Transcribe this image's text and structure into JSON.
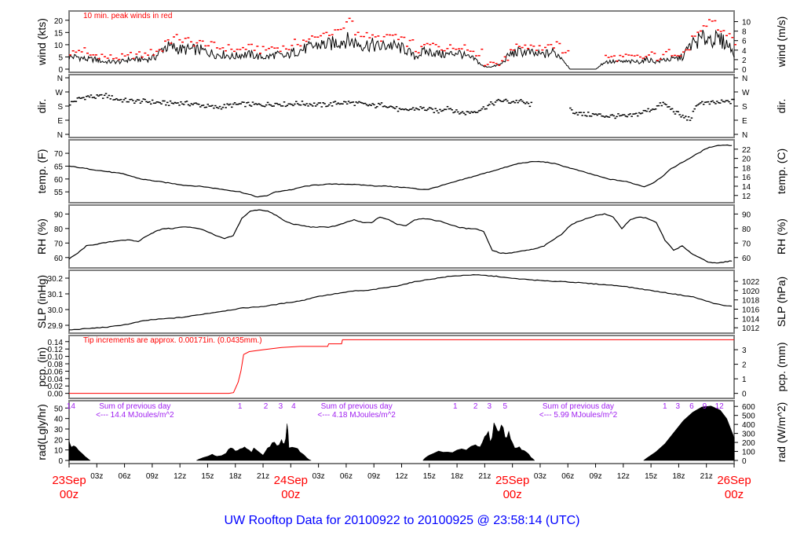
{
  "chart_data": {
    "type": "line",
    "title": "UW Rooftop Data for 20100922  to  20100925 @ 23:58:14  (UTC)",
    "colors": {
      "line": "#000000",
      "peak": "#ff0000",
      "precip": "#ff0000",
      "annot": "#a020f0",
      "title": "#0000ff",
      "date": "#ff0000",
      "frame": "#808080"
    },
    "x_hours_range": [
      0,
      72
    ],
    "x_ticks": [
      "03z",
      "06z",
      "09z",
      "12z",
      "15z",
      "18z",
      "21z",
      "03z",
      "06z",
      "09z",
      "12z",
      "15z",
      "18z",
      "21z",
      "03z",
      "06z",
      "09z",
      "12z",
      "15z",
      "18z",
      "21z"
    ],
    "x_tick_hours": [
      3,
      6,
      9,
      12,
      15,
      18,
      21,
      27,
      30,
      33,
      36,
      39,
      42,
      45,
      51,
      54,
      57,
      60,
      63,
      66,
      69
    ],
    "date_labels": [
      {
        "day": "23Sep",
        "hour": "00z",
        "at": 0
      },
      {
        "day": "24Sep",
        "hour": "00z",
        "at": 24
      },
      {
        "day": "25Sep",
        "hour": "00z",
        "at": 48
      },
      {
        "day": "26Sep",
        "hour": "00z",
        "at": 72
      }
    ],
    "panels": [
      {
        "id": "wind",
        "ylabel": "wind (kts)",
        "ylabel_right": "wind (m/s)",
        "ylim": [
          0,
          22.5
        ],
        "yticks": [
          0,
          5,
          10,
          15,
          20
        ],
        "ytick_labels": [
          "0",
          "5",
          "10",
          "15",
          "20"
        ],
        "rticks": [
          0,
          2,
          4,
          6,
          8,
          10
        ],
        "rtick_labels": [
          "0",
          "2",
          "4",
          "6",
          "8",
          "10"
        ],
        "rscale": 1.944,
        "annotation": "10 min. peak winds in red",
        "values": [
          5,
          5,
          4,
          4,
          3,
          3,
          3,
          4,
          4,
          4,
          5,
          9,
          9,
          8,
          8,
          8,
          7,
          6,
          6,
          5,
          6,
          6,
          5,
          5,
          6,
          5,
          7,
          8,
          9,
          10,
          10,
          11,
          12,
          11,
          10,
          10,
          9,
          10,
          9,
          8,
          5,
          7,
          7,
          6,
          6,
          7,
          5,
          4,
          1,
          1,
          2,
          6,
          7,
          7,
          6,
          6,
          7,
          5,
          0,
          0,
          0,
          0,
          3,
          3,
          3,
          3,
          3,
          4,
          3,
          4,
          4,
          5,
          10,
          12,
          13,
          12,
          11,
          7
        ],
        "peaks": [
          7,
          8,
          6,
          6,
          5,
          5,
          5,
          6,
          6,
          7,
          8,
          12,
          13,
          12,
          11,
          11,
          10,
          9,
          9,
          8,
          9,
          9,
          8,
          9,
          9,
          9,
          11,
          12,
          13,
          15,
          15,
          16,
          20,
          15,
          14,
          13,
          13,
          14,
          12,
          11,
          8,
          10,
          10,
          9,
          9,
          10,
          8,
          7,
          3,
          3,
          4,
          9,
          10,
          10,
          9,
          9,
          10,
          8,
          0,
          0,
          0,
          0,
          5,
          5,
          5,
          5,
          5,
          6,
          5,
          7,
          7,
          8,
          14,
          17,
          19,
          16,
          14,
          10
        ]
      },
      {
        "id": "dir",
        "ylabel": "dir.",
        "ylabel_right": "dir.",
        "ylim": [
          0,
          360
        ],
        "yticks": [
          0,
          90,
          180,
          270,
          360
        ],
        "ytick_labels": [
          "N",
          "E",
          "S",
          "W",
          "N"
        ],
        "rtick_labels": [
          "N",
          "E",
          "S",
          "W",
          "N"
        ],
        "values": [
          200,
          230,
          245,
          240,
          250,
          230,
          220,
          215,
          215,
          210,
          205,
          200,
          205,
          200,
          195,
          185,
          175,
          180,
          190,
          195,
          195,
          190,
          195,
          200,
          195,
          200,
          200,
          195,
          190,
          195,
          205,
          205,
          200,
          190,
          185,
          195,
          175,
          150,
          165,
          170,
          160,
          150,
          180,
          145,
          140,
          150,
          170,
          200,
          220,
          210,
          215,
          195,
          190,
          240,
          210,
          185,
          150,
          130,
          130,
          125,
          120,
          120,
          115,
          130,
          150,
          170,
          200,
          160,
          120,
          100,
          210,
          200,
          205,
          210,
          215
        ]
      },
      {
        "id": "temp",
        "ylabel": "temp. (F)",
        "ylabel_right": "temp. (C)",
        "ylim": [
          52,
          74
        ],
        "yticks": [
          55,
          60,
          65,
          70
        ],
        "ytick_labels": [
          "55",
          "60",
          "65",
          "70"
        ],
        "rticks": [
          12,
          14,
          16,
          18,
          20,
          22
        ],
        "rtick_labels": [
          "12",
          "14",
          "16",
          "18",
          "20",
          "22"
        ],
        "values": [
          65,
          64.5,
          64,
          63.5,
          63,
          62.5,
          62,
          61,
          60,
          59.5,
          59,
          58.5,
          58,
          57.5,
          57.3,
          57,
          56.5,
          56,
          55.5,
          55,
          54,
          53,
          53.5,
          55,
          55.5,
          56,
          57,
          57.5,
          57.8,
          58,
          58,
          58,
          57.8,
          57.6,
          57.3,
          57.3,
          57,
          56.8,
          56.5,
          56,
          56,
          57,
          58,
          59,
          60,
          61,
          62,
          63,
          64,
          65,
          66,
          66.5,
          66.8,
          66.6,
          66,
          65,
          64,
          63,
          62,
          61,
          60,
          59.5,
          59,
          58,
          57,
          58.5,
          61,
          64,
          66,
          68,
          70,
          72,
          73,
          73.2,
          73
        ]
      },
      {
        "id": "rh",
        "ylabel": "RH (%)",
        "ylabel_right": "RH (%)",
        "ylim": [
          55,
          94
        ],
        "yticks": [
          60,
          70,
          80,
          90
        ],
        "ytick_labels": [
          "60",
          "70",
          "80",
          "90"
        ],
        "rtick_labels": [
          "60",
          "70",
          "80",
          "90"
        ],
        "values": [
          59,
          63,
          68,
          69,
          70,
          71,
          72,
          72,
          71,
          75,
          78,
          80,
          80,
          81,
          81,
          80,
          78,
          75,
          73,
          75,
          87,
          92,
          93,
          92,
          89,
          85,
          83,
          82,
          81,
          81,
          81,
          82,
          84,
          86,
          84,
          84,
          88,
          86,
          83,
          82,
          86,
          87,
          86,
          85,
          83,
          81,
          80,
          80,
          78,
          65,
          63,
          63,
          64,
          65,
          66,
          68,
          72,
          76,
          82,
          85,
          87,
          89,
          90,
          88,
          80,
          86,
          88,
          87,
          84,
          72,
          65,
          68,
          63,
          60,
          57,
          56,
          57,
          58
        ],
        "hours_step": 0.935
      },
      {
        "id": "slp",
        "ylabel": "SLP (inHg)",
        "ylabel_right": "SLP (hPa)",
        "ylim": [
          29.87,
          30.23
        ],
        "yticks": [
          29.9,
          30.0,
          30.1,
          30.2
        ],
        "ytick_labels": [
          "29.9",
          "30.0",
          "30.1",
          "30.2"
        ],
        "rticks": [
          1012,
          1014,
          1016,
          1018,
          1020,
          1022
        ],
        "rtick_labels": [
          "1012",
          "1014",
          "1016",
          "1018",
          "1020",
          "1022"
        ],
        "values": [
          29.87,
          29.875,
          29.88,
          29.885,
          29.89,
          29.9,
          29.91,
          29.925,
          29.935,
          29.94,
          29.945,
          29.95,
          29.96,
          29.97,
          29.98,
          29.99,
          30.0,
          30.01,
          30.015,
          30.02,
          30.03,
          30.04,
          30.05,
          30.06,
          30.08,
          30.09,
          30.1,
          30.11,
          30.12,
          30.12,
          30.13,
          30.14,
          30.15,
          30.165,
          30.18,
          30.19,
          30.2,
          30.21,
          30.215,
          30.22,
          30.22,
          30.215,
          30.21,
          30.2,
          30.195,
          30.19,
          30.185,
          30.18,
          30.18,
          30.175,
          30.17,
          30.165,
          30.16,
          30.155,
          30.15,
          30.14,
          30.13,
          30.12,
          30.11,
          30.1,
          30.09,
          30.08,
          30.06,
          30.04,
          30.025,
          30.02
        ],
        "hours_step": 1.108
      },
      {
        "id": "pcp",
        "ylabel": "pcp. (in)",
        "ylabel_right": "pcp. (mm)",
        "ylim": [
          -0.005,
          0.148
        ],
        "yticks": [
          0,
          0.02,
          0.04,
          0.06,
          0.08,
          0.1,
          0.12,
          0.14
        ],
        "ytick_labels": [
          "0.00",
          "0.02",
          "0.04",
          "0.06",
          "0.08",
          "0.10",
          "0.12",
          "0.14"
        ],
        "rticks": [
          0,
          1,
          2,
          3
        ],
        "rtick_labels": [
          "0",
          "1",
          "2",
          "3"
        ],
        "annotation": "Tip increments are approx. 0.00171in. (0.0435mm.)",
        "points": [
          [
            0,
            0
          ],
          [
            17.3,
            0
          ],
          [
            17.8,
            0.002
          ],
          [
            18.3,
            0.03
          ],
          [
            18.6,
            0.06
          ],
          [
            18.9,
            0.105
          ],
          [
            19.5,
            0.113
          ],
          [
            21,
            0.118
          ],
          [
            23,
            0.124
          ],
          [
            25,
            0.127
          ],
          [
            28,
            0.127
          ],
          [
            28.1,
            0.134
          ],
          [
            29.5,
            0.134
          ],
          [
            29.6,
            0.145
          ],
          [
            72,
            0.145
          ]
        ]
      },
      {
        "id": "rad",
        "ylabel": "rad(Lgly/hr)",
        "ylabel_right": "rad (W/m^2)",
        "ylim": [
          0,
          54
        ],
        "yticks": [
          0,
          10,
          20,
          30,
          40,
          50
        ],
        "ytick_labels": [
          "0",
          "10",
          "20",
          "30",
          "40",
          "50"
        ],
        "rticks": [
          0,
          100,
          200,
          300,
          400,
          500,
          600
        ],
        "rtick_labels": [
          "0",
          "100",
          "200",
          "300",
          "400",
          "500",
          "600"
        ],
        "rscale": 11.63,
        "points": [
          [
            0,
            18
          ],
          [
            0.5,
            14
          ],
          [
            1,
            10
          ],
          [
            1.5,
            6
          ],
          [
            2,
            2
          ],
          [
            2.3,
            0
          ],
          [
            13.8,
            0
          ],
          [
            14,
            1
          ],
          [
            15,
            4
          ],
          [
            15.5,
            6
          ],
          [
            16,
            4
          ],
          [
            17,
            7
          ],
          [
            17.5,
            12
          ],
          [
            18,
            9
          ],
          [
            18.5,
            11
          ],
          [
            19,
            13
          ],
          [
            19.5,
            10
          ],
          [
            20,
            12
          ],
          [
            21,
            5
          ],
          [
            21.5,
            12
          ],
          [
            22,
            17
          ],
          [
            22.5,
            14
          ],
          [
            23,
            20
          ],
          [
            23.3,
            16
          ],
          [
            23.6,
            35
          ],
          [
            23.8,
            12
          ],
          [
            24.5,
            12
          ],
          [
            25,
            8
          ],
          [
            25.8,
            2
          ],
          [
            26.2,
            0
          ],
          [
            38.3,
            0
          ],
          [
            38.5,
            2
          ],
          [
            39,
            5
          ],
          [
            40,
            9
          ],
          [
            41,
            8
          ],
          [
            42,
            10
          ],
          [
            43,
            10
          ],
          [
            44,
            15
          ],
          [
            44.5,
            13
          ],
          [
            45,
            23
          ],
          [
            45.4,
            28
          ],
          [
            45.8,
            22
          ],
          [
            46,
            36
          ],
          [
            46.4,
            28
          ],
          [
            46.8,
            34
          ],
          [
            47.2,
            22
          ],
          [
            47.6,
            28
          ],
          [
            48,
            17
          ],
          [
            48.5,
            12
          ],
          [
            49,
            10
          ],
          [
            49.5,
            8
          ],
          [
            50,
            3
          ],
          [
            50.4,
            0
          ],
          [
            62.2,
            0
          ],
          [
            62.5,
            2
          ],
          [
            63.5,
            8
          ],
          [
            64.5,
            16
          ],
          [
            65.5,
            27
          ],
          [
            66.5,
            38
          ],
          [
            67.5,
            46
          ],
          [
            68.5,
            51
          ],
          [
            69.5,
            52
          ],
          [
            70.5,
            48
          ],
          [
            71.2,
            40
          ],
          [
            72,
            22
          ]
        ],
        "annotations": [
          {
            "hour": 1,
            "lines": [
              "Sum of previous day",
              "<--- 14.4 MJoules/m^2"
            ],
            "at": 5
          },
          {
            "hour": 2,
            "lines": [
              "Sum of previous day",
              "<--- 4.18 MJoules/m^2"
            ],
            "at": 29
          },
          {
            "hour": 3,
            "lines": [
              "Sum of previous day",
              "<--- 5.99 MJoules/m^2"
            ],
            "at": 53
          }
        ],
        "hour_marks": [
          {
            "t": "14",
            "at": 0.2
          },
          {
            "t": "1",
            "at": 18.5
          },
          {
            "t": "2",
            "at": 21.3
          },
          {
            "t": "3",
            "at": 22.9
          },
          {
            "t": "4",
            "at": 24.3
          },
          {
            "t": "1",
            "at": 41.8
          },
          {
            "t": "2",
            "at": 44
          },
          {
            "t": "3",
            "at": 45.5
          },
          {
            "t": "5",
            "at": 47.2
          },
          {
            "t": "1",
            "at": 64.5
          },
          {
            "t": "3",
            "at": 65.9
          },
          {
            "t": "6",
            "at": 67.4
          },
          {
            "t": "9",
            "at": 68.8
          },
          {
            "t": "12",
            "at": 70.4
          }
        ]
      }
    ]
  }
}
